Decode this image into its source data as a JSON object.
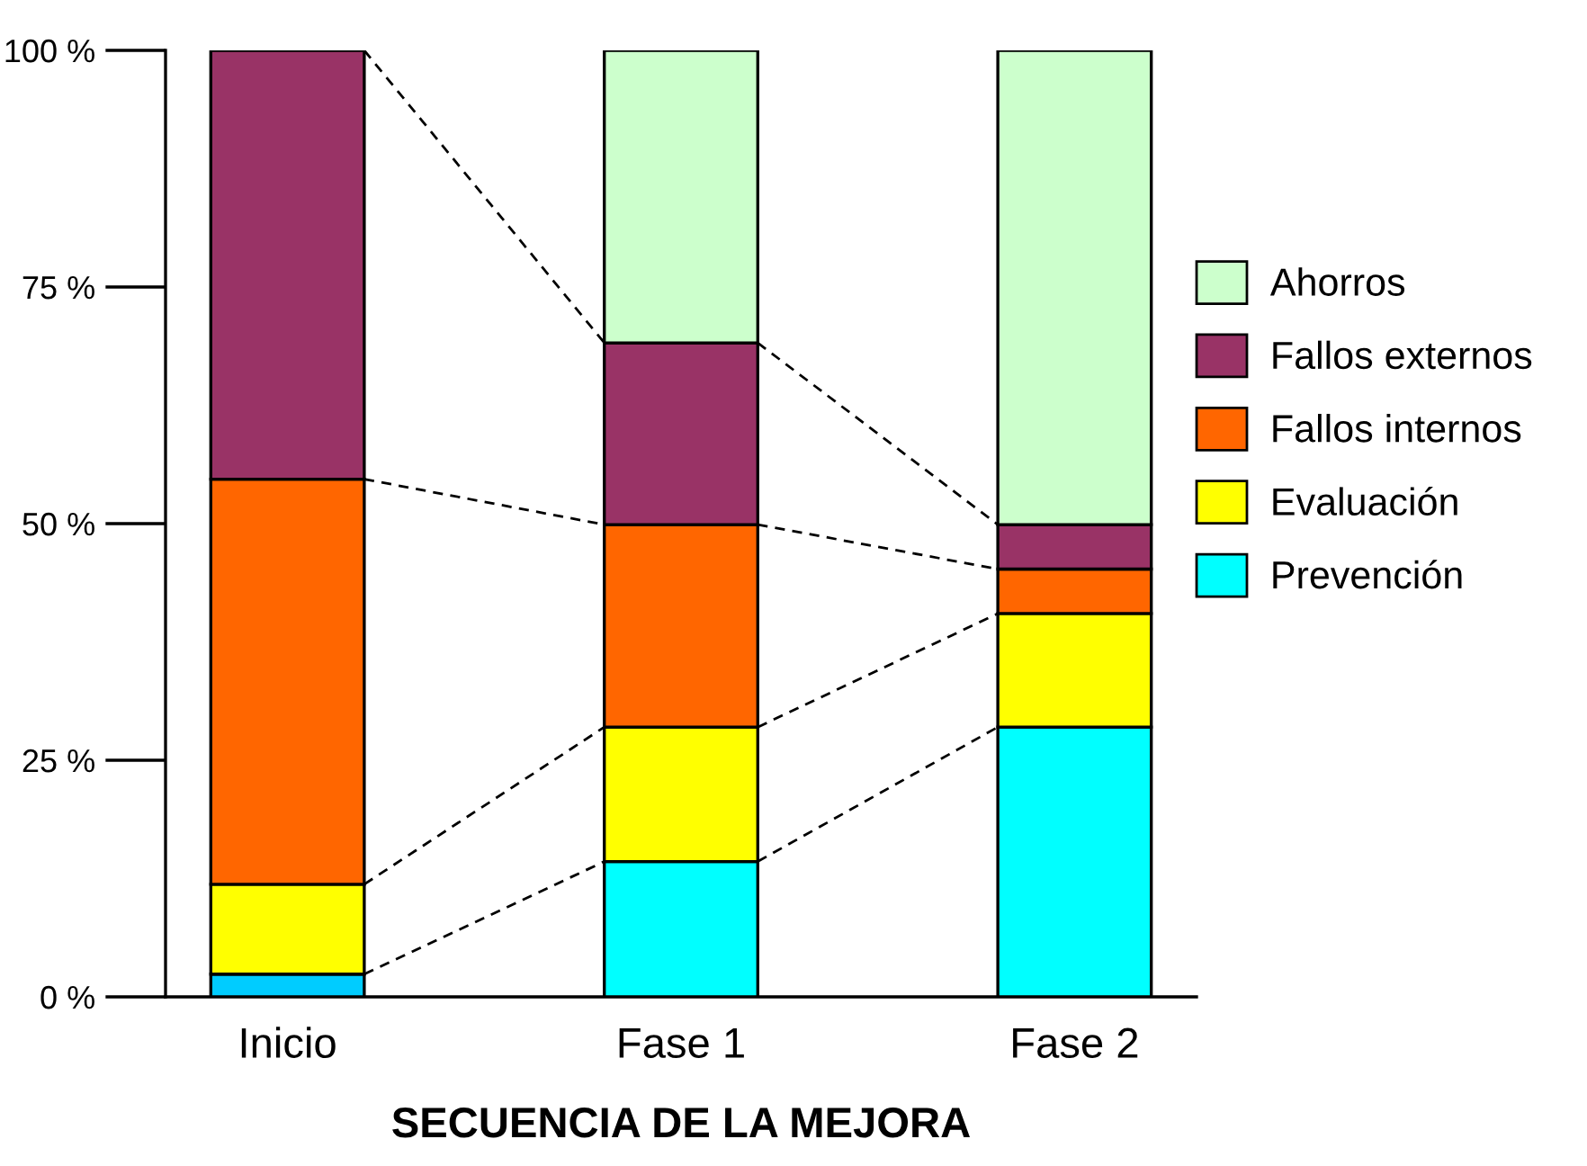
{
  "chart_data": {
    "type": "bar",
    "stacked": true,
    "xlabel": "SECUENCIA DE LA MEJORA",
    "categories": [
      "Inicio",
      "Fase 1",
      "Fase 2"
    ],
    "series": [
      {
        "name": "Prevención",
        "color": "#00ffff",
        "colors": [
          "#00ccff",
          "#00ffff",
          "#00ffff"
        ],
        "values": [
          2.4,
          14.3,
          28.5
        ]
      },
      {
        "name": "Evaluación",
        "color": "#ffff00",
        "values": [
          9.5,
          14.2,
          12.0
        ]
      },
      {
        "name": "Fallos internos",
        "color": "#ff6600",
        "values": [
          42.8,
          21.4,
          4.7
        ]
      },
      {
        "name": "Fallos externos",
        "color": "#993366",
        "values": [
          45.3,
          19.2,
          4.7
        ]
      },
      {
        "name": "Ahorros",
        "color": "#ccffcc",
        "values": [
          null,
          30.9,
          50.1
        ]
      }
    ],
    "ylim": [
      0,
      100
    ],
    "yticks": [
      {
        "value": 0,
        "label": "0 %"
      },
      {
        "value": 25,
        "label": "25 %"
      },
      {
        "value": 50,
        "label": "50 %"
      },
      {
        "value": 75,
        "label": "75 %"
      },
      {
        "value": 100,
        "label": "100 %"
      }
    ],
    "grid": false,
    "legend": "right",
    "line_style": "dashed"
  }
}
